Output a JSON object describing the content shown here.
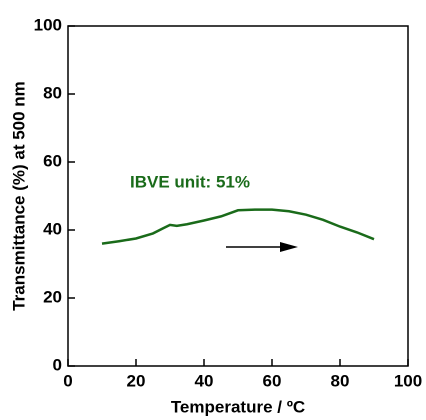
{
  "chart_data": {
    "type": "line",
    "xlabel": "Temperature / ºC",
    "ylabel": "Transmittance (%) at 500 nm",
    "annotation": "IBVE unit: 51%",
    "x": [
      10,
      15,
      20,
      25,
      28,
      30,
      32,
      35,
      40,
      45,
      50,
      55,
      60,
      65,
      70,
      75,
      80,
      85,
      90
    ],
    "values": [
      36,
      36.7,
      37.5,
      39,
      40.5,
      41.5,
      41.2,
      41.7,
      42.8,
      44,
      45.8,
      46,
      46,
      45.5,
      44.5,
      43,
      41,
      39.3,
      37.3
    ],
    "color": "#1a6b1a",
    "xlim": [
      0,
      100
    ],
    "xticks": [
      0,
      20,
      40,
      60,
      80,
      100
    ],
    "ylim": [
      0,
      100
    ],
    "yticks": [
      0,
      20,
      40,
      60,
      80,
      100
    ]
  }
}
